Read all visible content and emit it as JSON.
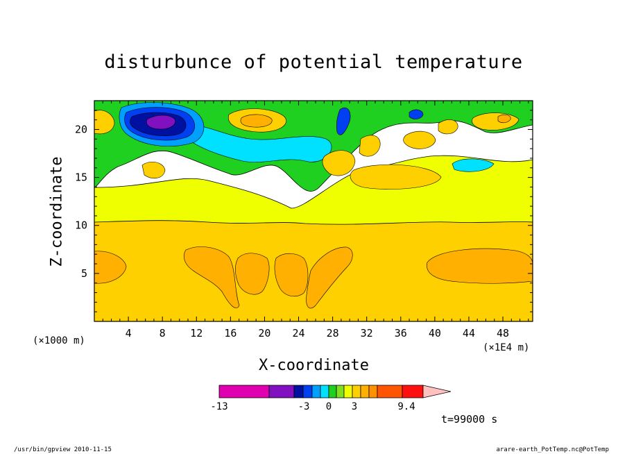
{
  "chart_data": {
    "type": "heatmap",
    "title": "disturbunce of potential temperature",
    "xlabel": "X-coordinate",
    "ylabel": "Z-coordinate",
    "x_unit_left": "(×1000 m)",
    "x_unit_right": "(×1E4 m)",
    "xlim": [
      0,
      51.5
    ],
    "ylim": [
      0,
      23
    ],
    "x_ticks": [
      4,
      8,
      12,
      16,
      20,
      24,
      28,
      32,
      36,
      40,
      44,
      48
    ],
    "y_ticks": [
      5,
      10,
      15,
      20
    ],
    "grid": false,
    "colorbar": {
      "labels": [
        {
          "text": "-13",
          "level": -13
        },
        {
          "text": "-3",
          "level": -3
        },
        {
          "text": "0",
          "level": 0
        },
        {
          "text": "3",
          "level": 3
        },
        {
          "text": "9.4",
          "level": 9.4
        }
      ],
      "colors": [
        "#e000b0",
        "#8010c0",
        "#0010a0",
        "#0040f0",
        "#00a0ff",
        "#00e0ff",
        "#20d020",
        "#80e020",
        "#f0ff00",
        "#ffd000",
        "#ffb000",
        "#ff9000",
        "#ff5500",
        "#ff1010",
        "#ff8080",
        "#ffc0c0"
      ],
      "extend": "right"
    },
    "time_label": "t=99000 s"
  },
  "footer": {
    "left": "/usr/bin/gpview   2010-11-15",
    "right": "arare-earth_PotTemp.nc@PotTemp"
  }
}
